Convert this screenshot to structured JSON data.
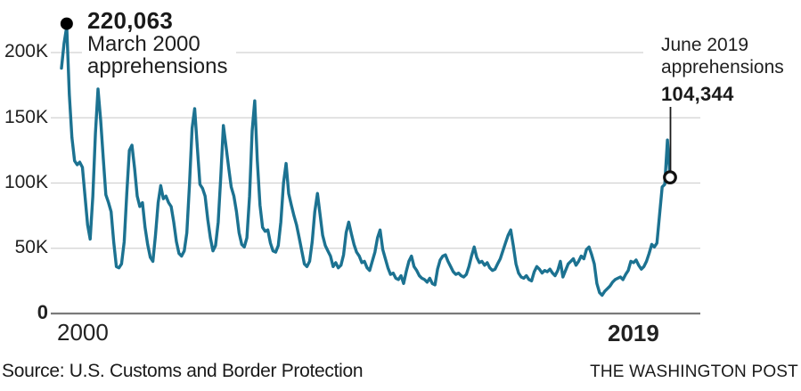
{
  "chart_data": {
    "type": "line",
    "title": "",
    "x_start": "2000-01",
    "x_end": "2019-06",
    "frequency": "monthly",
    "values_thousands": [
      188,
      207,
      220.063,
      168,
      135,
      117,
      114,
      116,
      112,
      90,
      68,
      57,
      90,
      138,
      172,
      148,
      119,
      91,
      85,
      78,
      55,
      36,
      35,
      38,
      55,
      92,
      125,
      129,
      111,
      90,
      82,
      85,
      66,
      53,
      43,
      40,
      60,
      85,
      98,
      88,
      90,
      85,
      82,
      70,
      55,
      46,
      44,
      48,
      62,
      98,
      142,
      157,
      128,
      99,
      96,
      90,
      72,
      58,
      48,
      52,
      70,
      105,
      144,
      128,
      112,
      97,
      90,
      78,
      62,
      53,
      51,
      58,
      90,
      140,
      163,
      117,
      83,
      66,
      63,
      64,
      54,
      48,
      47,
      52,
      70,
      100,
      115,
      92,
      83,
      75,
      68,
      58,
      48,
      38,
      36,
      40,
      55,
      78,
      92,
      76,
      60,
      52,
      48,
      44,
      36,
      39,
      35,
      37,
      45,
      62,
      70,
      61,
      53,
      47,
      44,
      39,
      40,
      35,
      33,
      40,
      47,
      58,
      64,
      49,
      42,
      35,
      30,
      31,
      27,
      26,
      29,
      23,
      32,
      40,
      44,
      36,
      33,
      29,
      27,
      26,
      24,
      27,
      23,
      22,
      34,
      41,
      44,
      45,
      40,
      36,
      32,
      30,
      31,
      29,
      28,
      30,
      36,
      44,
      51,
      43,
      39,
      40,
      37,
      39,
      35,
      33,
      34,
      38,
      42,
      48,
      54,
      60,
      64,
      52,
      38,
      31,
      28,
      27,
      29,
      26,
      25,
      32,
      36,
      34,
      31,
      33,
      32,
      34,
      31,
      29,
      33,
      40,
      28,
      33,
      38,
      40,
      42,
      37,
      40,
      44,
      42,
      49,
      51,
      45,
      38,
      23,
      16,
      14,
      17,
      19,
      21,
      24,
      26,
      27,
      28,
      26,
      30,
      33,
      40,
      39,
      41,
      37,
      34,
      36,
      40,
      46,
      53,
      51,
      54,
      76,
      97,
      99,
      133,
      104.344
    ],
    "ylim": [
      0,
      230000
    ],
    "y_ticks": [
      "200K",
      "150K",
      "100K",
      "50K",
      "0"
    ],
    "y_tick_values": [
      200000,
      150000,
      100000,
      50000,
      0
    ],
    "x_ticks": [
      "2000",
      "2019"
    ],
    "grid": true,
    "legend": "none",
    "annotations": {
      "peak": {
        "value": "220,063",
        "label_line1": "March 2000",
        "label_line2": "apprehensions",
        "month_index": 2,
        "marker": "filled-dot"
      },
      "end": {
        "label_line1": "June 2019",
        "label_line2": "apprehensions",
        "value": "104,344",
        "month_index": 233,
        "marker": "open-circle"
      }
    },
    "colors": {
      "line": "#1c7291",
      "grid": "#d2d2d2",
      "axis": "#7a7a7a",
      "peak_marker": "#000000",
      "end_marker_stroke": "#111111",
      "callout_line": "#1a1a1a"
    }
  },
  "footer": {
    "source": "Source: U.S. Customs and Border Protection",
    "credit": "THE WASHINGTON POST"
  }
}
